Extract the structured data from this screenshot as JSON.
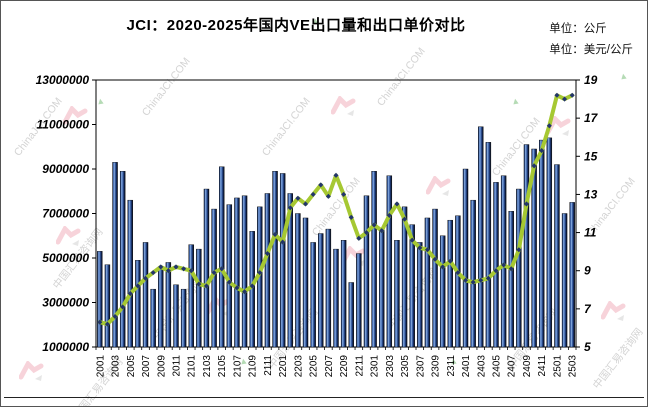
{
  "title": "JCI：2020-2025年国内VE出口量和出口单价对比",
  "units": {
    "volume": "单位：公斤",
    "price": "单位：美元/公斤"
  },
  "watermark": {
    "cn": "中国汇易咨询网",
    "en": "ChinaJCI.COM"
  },
  "chart_data": {
    "type": "bar",
    "subtype": "bar+line combo, dual axis",
    "title": "JCI：2020-2025年国内VE出口量和出口单价对比",
    "categories": [
      "2001",
      "2002",
      "2003",
      "2004",
      "2005",
      "2006",
      "2007",
      "2008",
      "2009",
      "2010",
      "2011",
      "2012",
      "2101",
      "2102",
      "2103",
      "2104",
      "2105",
      "2106",
      "2107",
      "2108",
      "2109",
      "2110",
      "2111",
      "2112",
      "2201",
      "2202",
      "2203",
      "2204",
      "2205",
      "2206",
      "2207",
      "2208",
      "2209",
      "2210",
      "2211",
      "2212",
      "2301",
      "2302",
      "2303",
      "2304",
      "2305",
      "2306",
      "2307",
      "2308",
      "2309",
      "2310",
      "2311",
      "2312",
      "2401",
      "2402",
      "2403",
      "2404",
      "2405",
      "2406",
      "2407",
      "2408",
      "2409",
      "2410",
      "2411",
      "2412",
      "2501",
      "2502",
      "2503"
    ],
    "x_label_interval": 2,
    "series": [
      {
        "name": "出口量",
        "type": "bar",
        "axis": "left",
        "unit": "公斤",
        "values": [
          5300000,
          4700000,
          9300000,
          8900000,
          7600000,
          4900000,
          5700000,
          3600000,
          4500000,
          4800000,
          3800000,
          3600000,
          5600000,
          5400000,
          8100000,
          7200000,
          9100000,
          7400000,
          7700000,
          7800000,
          6200000,
          7300000,
          7900000,
          8900000,
          8800000,
          7900000,
          7000000,
          6800000,
          5700000,
          6100000,
          6300000,
          5400000,
          5800000,
          3900000,
          5200000,
          7800000,
          8900000,
          6300000,
          8700000,
          5800000,
          7300000,
          6500000,
          5700000,
          6800000,
          7200000,
          6000000,
          6700000,
          6900000,
          9000000,
          7600000,
          10900000,
          10200000,
          8400000,
          8700000,
          7100000,
          8100000,
          10100000,
          9900000,
          10300000,
          10400000,
          9200000,
          7000000,
          7500000
        ]
      },
      {
        "name": "出口单价",
        "type": "line",
        "axis": "right",
        "unit": "美元/公斤",
        "values": [
          6.3,
          6.2,
          6.6,
          7.1,
          7.8,
          8.2,
          8.6,
          8.9,
          9.2,
          9.0,
          9.2,
          9.1,
          9.0,
          8.3,
          8.2,
          8.9,
          9.1,
          8.4,
          8.1,
          7.9,
          8.2,
          8.9,
          9.9,
          10.9,
          10.5,
          12.3,
          12.8,
          12.5,
          13.0,
          13.5,
          12.9,
          14.0,
          13.0,
          11.8,
          10.7,
          11.0,
          11.4,
          11.1,
          11.9,
          12.5,
          11.7,
          10.6,
          10.2,
          10.1,
          9.6,
          9.2,
          9.5,
          8.9,
          8.5,
          8.4,
          8.5,
          8.6,
          9.0,
          9.3,
          9.1,
          10.1,
          12.5,
          14.5,
          15.3,
          16.6,
          18.2,
          18.0,
          18.2
        ]
      }
    ],
    "left_axis": {
      "min": 1000000,
      "max": 13000000,
      "step": 2000000,
      "ticks": [
        "1000000",
        "3000000",
        "5000000",
        "7000000",
        "9000000",
        "11000000",
        "13000000"
      ]
    },
    "right_axis": {
      "min": 5,
      "max": 19,
      "step": 2,
      "ticks": [
        "5",
        "7",
        "9",
        "11",
        "13",
        "15",
        "17",
        "19"
      ]
    },
    "grid": false,
    "legend": "none",
    "colors": {
      "bar_main": "#1f3f8f",
      "bar_highlight": "#8fb3e6",
      "line": "#a6c832",
      "marker": "#23356b"
    }
  }
}
